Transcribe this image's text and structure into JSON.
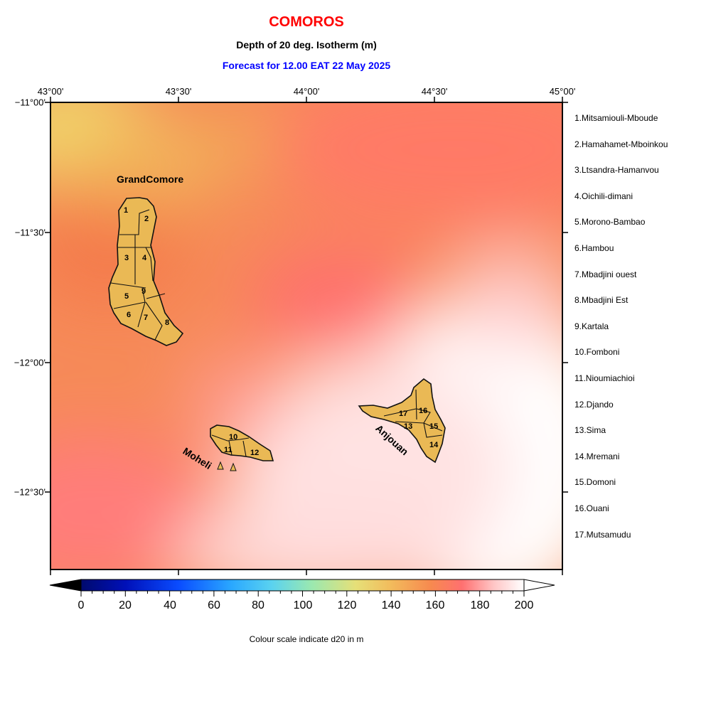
{
  "header": {
    "title": "COMOROS",
    "subtitle": "Depth of 20 deg. Isotherm (m)",
    "forecast": "Forecast for  12.00 EAT 22 May 2025"
  },
  "axes": {
    "lon_labels": [
      "43°00'",
      "43°30'",
      "44°00'",
      "44°30'",
      "45°00'"
    ],
    "lat_labels": [
      "−11°00'",
      "−11°30'",
      "−12°00'",
      "−12°30'"
    ]
  },
  "islands": {
    "grand_comore": "GrandComore",
    "moheli": "Moheli",
    "anjouan": "Anjouan"
  },
  "region_numbers": [
    "1",
    "2",
    "3",
    "4",
    "5",
    "6",
    "7",
    "8",
    "9",
    "10",
    "11",
    "12",
    "13",
    "14",
    "15",
    "16",
    "17"
  ],
  "regions": [
    "1.Mitsamiouli-Mboude",
    "2.Hamahamet-Mboinkou",
    "3.Ltsandra-Hamanvou",
    "4.Oichili-dimani",
    "5.Morono-Bambao",
    "6.Hambou",
    "7.Mbadjini ouest",
    "8.Mbadjini Est",
    "9.Kartala",
    "10.Fomboni",
    "11.Nioumiachioi",
    "12.Djando",
    "13.Sima",
    "14.Mremani",
    "15.Domoni",
    "16.Ouani",
    "17.Mutsamudu"
  ],
  "colorbar": {
    "labels": [
      "0",
      "20",
      "40",
      "60",
      "80",
      "100",
      "120",
      "140",
      "160",
      "180",
      "200"
    ],
    "caption": "Colour scale indicate d20 in m",
    "min": 0,
    "max": 200
  },
  "colors": {
    "title": "#ff0000",
    "forecast": "#0000ff",
    "island_fill": "#eab955",
    "low": "#f0dc70",
    "mid": "#f4874f",
    "high": "#ff7777",
    "max": "#ffffff"
  }
}
